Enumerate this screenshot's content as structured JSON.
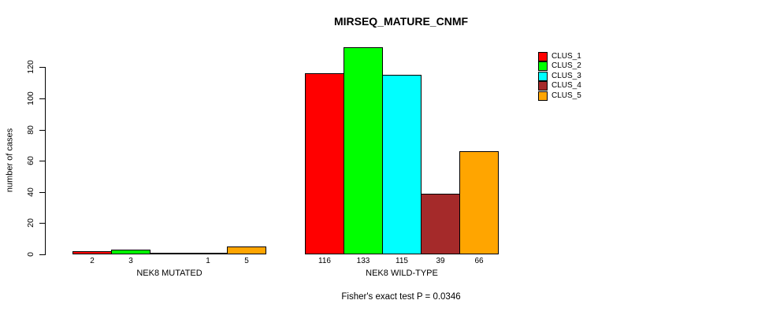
{
  "chart_data": {
    "type": "bar",
    "title": "MIRSEQ_MATURE_CNMF",
    "ylabel": "number of cases",
    "xlabel": "",
    "annotation": "Fisher's exact test P = 0.0346",
    "groups": [
      "NEK8 MUTATED",
      "NEK8 WILD-TYPE"
    ],
    "series": [
      {
        "name": "CLUS_1",
        "color": "#FF0000",
        "values": [
          2,
          116
        ]
      },
      {
        "name": "CLUS_2",
        "color": "#00FF00",
        "values": [
          3,
          133
        ]
      },
      {
        "name": "CLUS_3",
        "color": "#00FFFF",
        "values": [
          0,
          115
        ]
      },
      {
        "name": "CLUS_4",
        "color": "#A52A2A",
        "values": [
          1,
          39
        ]
      },
      {
        "name": "CLUS_5",
        "color": "#FFA500",
        "values": [
          5,
          66
        ]
      }
    ],
    "bar_value_labels": [
      [
        "2",
        "3",
        "",
        "1",
        "5"
      ],
      [
        "116",
        "133",
        "115",
        "39",
        "66"
      ]
    ],
    "yticks": [
      0,
      20,
      40,
      60,
      80,
      100,
      120
    ],
    "ylim": [
      0,
      133
    ],
    "grid": false,
    "legend_position": "right"
  }
}
